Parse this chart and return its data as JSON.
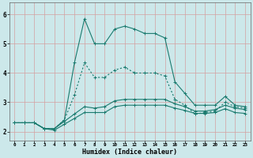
{
  "xlabel": "Humidex (Indice chaleur)",
  "bg_color": "#cce8ea",
  "line_color": "#1a7a6e",
  "grid_color": "#b8d8da",
  "x_ticks": [
    0,
    1,
    2,
    3,
    4,
    5,
    6,
    7,
    8,
    9,
    10,
    11,
    12,
    13,
    14,
    15,
    16,
    17,
    18,
    19,
    20,
    21,
    22,
    23
  ],
  "ylim": [
    1.7,
    6.4
  ],
  "xlim": [
    -0.5,
    23.5
  ],
  "series1_x": [
    0,
    1,
    2,
    3,
    4,
    5,
    6,
    7,
    8,
    9,
    10,
    11,
    12,
    13,
    14,
    15,
    16,
    17,
    18,
    19,
    20,
    21,
    22,
    23
  ],
  "series1_y": [
    2.3,
    2.3,
    2.3,
    2.1,
    2.1,
    2.4,
    4.35,
    5.85,
    5.0,
    5.0,
    5.5,
    5.6,
    5.5,
    5.35,
    5.35,
    5.2,
    3.7,
    3.3,
    2.9,
    2.9,
    2.9,
    3.2,
    2.9,
    2.85
  ],
  "series2_x": [
    0,
    1,
    2,
    3,
    4,
    5,
    6,
    7,
    8,
    9,
    10,
    11,
    12,
    13,
    14,
    15,
    16,
    17,
    18,
    19,
    20,
    21,
    22,
    23
  ],
  "series2_y": [
    2.3,
    2.3,
    2.3,
    2.1,
    2.1,
    2.4,
    3.25,
    4.35,
    3.85,
    3.85,
    4.1,
    4.2,
    4.0,
    4.0,
    4.0,
    3.9,
    3.1,
    2.9,
    2.6,
    2.65,
    2.7,
    3.0,
    2.85,
    2.8
  ],
  "series3_x": [
    0,
    1,
    2,
    3,
    4,
    5,
    6,
    7,
    8,
    9,
    10,
    11,
    12,
    13,
    14,
    15,
    16,
    17,
    18,
    19,
    20,
    21,
    22,
    23
  ],
  "series3_y": [
    2.3,
    2.3,
    2.3,
    2.1,
    2.1,
    2.35,
    2.6,
    2.85,
    2.8,
    2.85,
    3.05,
    3.1,
    3.1,
    3.1,
    3.1,
    3.1,
    2.95,
    2.85,
    2.7,
    2.7,
    2.75,
    2.9,
    2.8,
    2.75
  ],
  "series4_x": [
    0,
    1,
    2,
    3,
    4,
    5,
    6,
    7,
    8,
    9,
    10,
    11,
    12,
    13,
    14,
    15,
    16,
    17,
    18,
    19,
    20,
    21,
    22,
    23
  ],
  "series4_y": [
    2.3,
    2.3,
    2.3,
    2.1,
    2.05,
    2.25,
    2.45,
    2.65,
    2.65,
    2.65,
    2.85,
    2.9,
    2.9,
    2.9,
    2.9,
    2.9,
    2.8,
    2.72,
    2.62,
    2.62,
    2.65,
    2.78,
    2.65,
    2.62
  ]
}
